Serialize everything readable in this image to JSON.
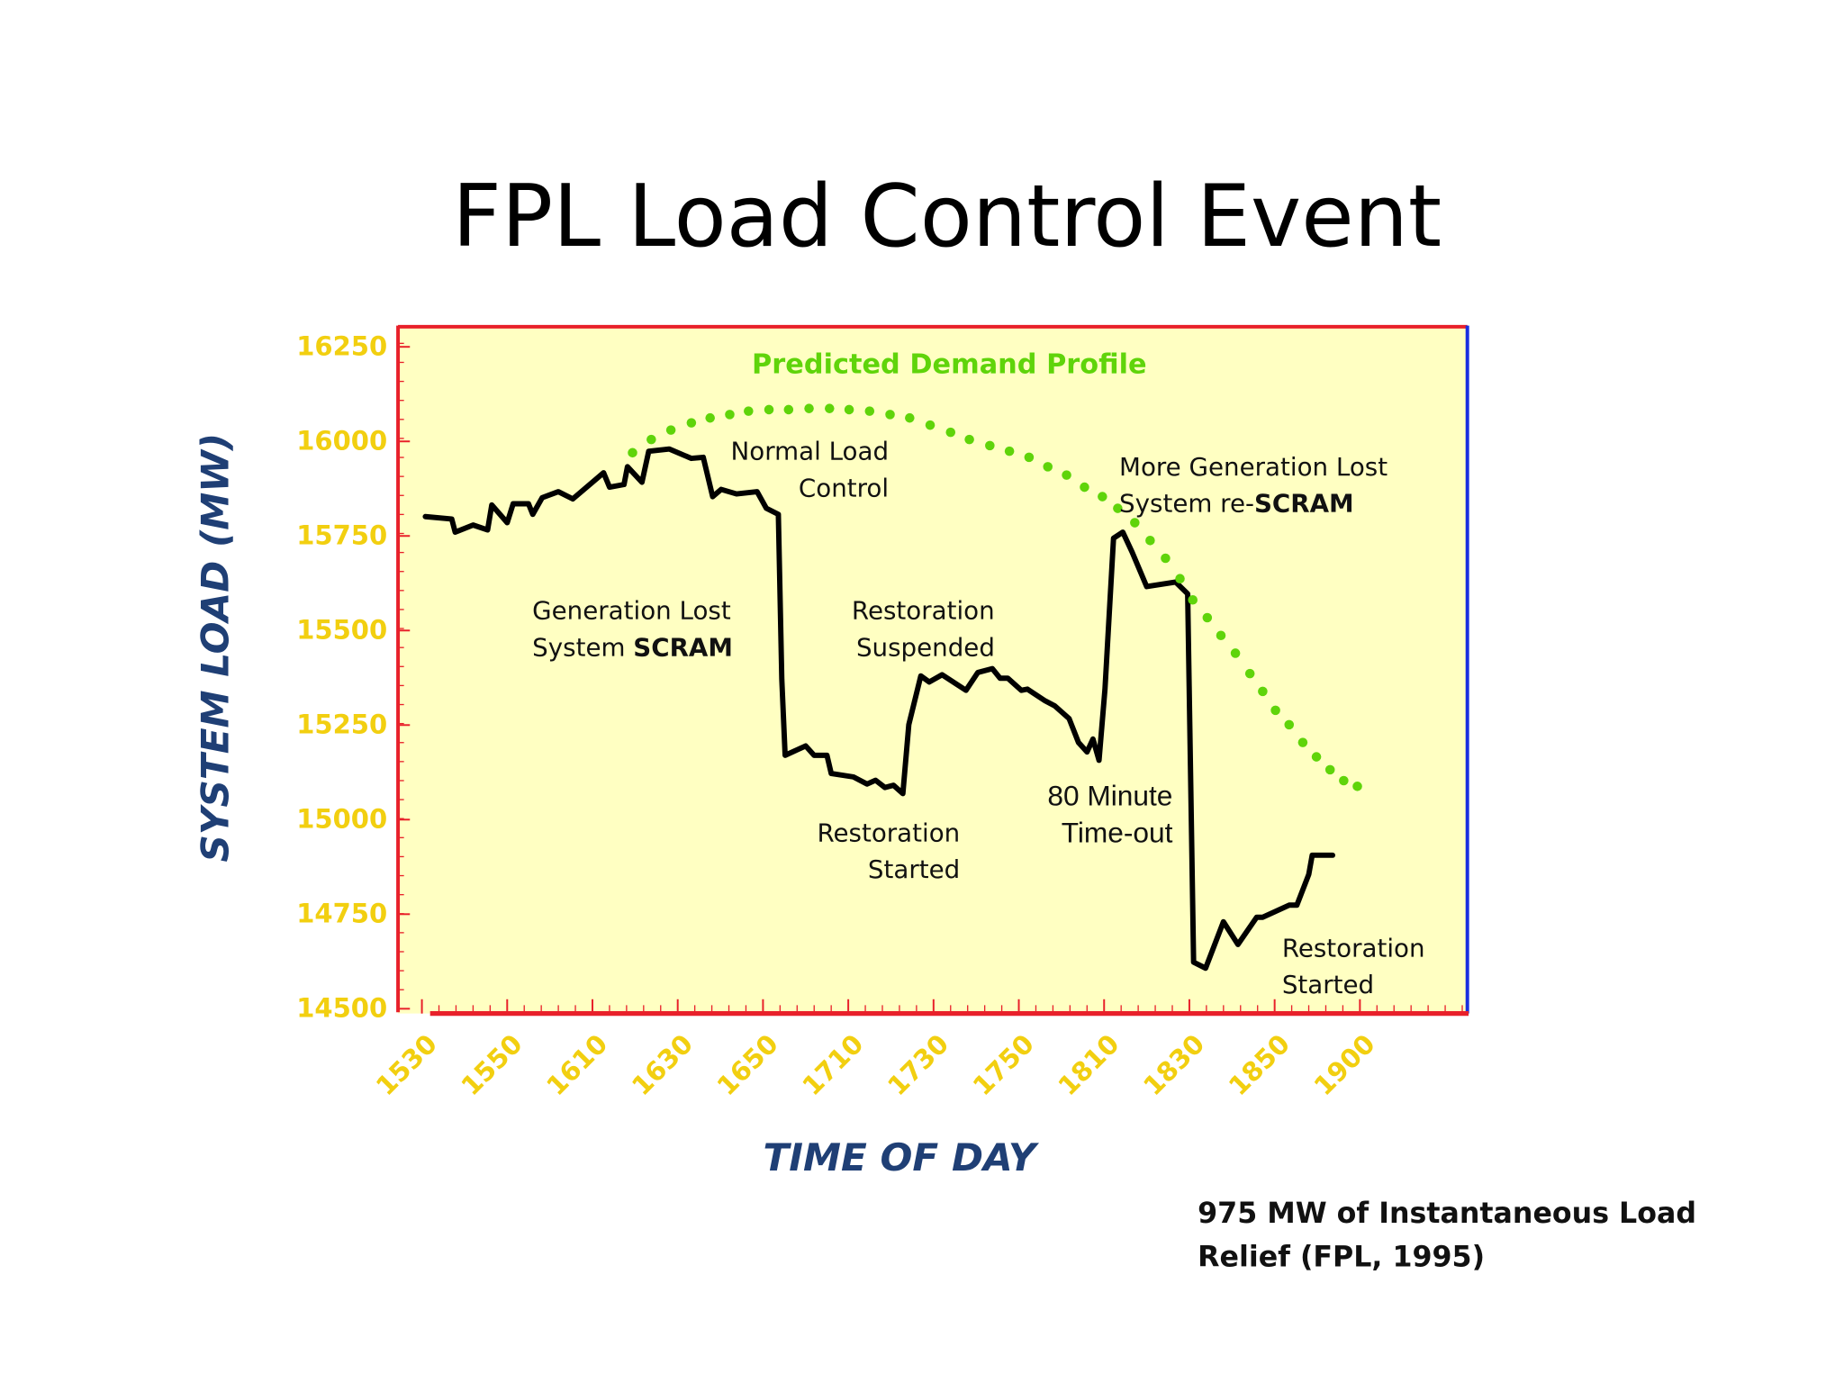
{
  "chart_data": {
    "type": "line",
    "title": "FPL Load Control Event",
    "xlabel": "TIME OF DAY",
    "ylabel": "SYSTEM LOAD (MW)",
    "note": [
      "975 MW of Instantaneous Load",
      "Relief (FPL, 1995)"
    ],
    "xlim": [
      -0.28,
      12.26
    ],
    "xticks": [
      {
        "value": 0,
        "label": "1530"
      },
      {
        "value": 1,
        "label": "1550"
      },
      {
        "value": 2,
        "label": "1610"
      },
      {
        "value": 3,
        "label": "1630"
      },
      {
        "value": 4,
        "label": "1650"
      },
      {
        "value": 5,
        "label": "1710"
      },
      {
        "value": 6,
        "label": "1730"
      },
      {
        "value": 7,
        "label": "1750"
      },
      {
        "value": 8,
        "label": "1810"
      },
      {
        "value": 9,
        "label": "1830"
      },
      {
        "value": 10,
        "label": "1850"
      },
      {
        "value": 11,
        "label": "1900"
      }
    ],
    "ylim": [
      14500,
      16300
    ],
    "yticks": [
      14500,
      14750,
      15000,
      15250,
      15500,
      15750,
      16000,
      16250
    ],
    "annotations": [
      [
        "Normal Load",
        "Control"
      ],
      [
        "Generation Lost",
        [
          "System ",
          "SCRAM"
        ]
      ],
      [
        "Restoration",
        "Suspended"
      ],
      [
        "Restoration",
        "Started"
      ],
      [
        "80 Minute",
        "Time-out"
      ],
      [
        "More Generation Lost",
        [
          "System re-",
          "SCRAM"
        ]
      ],
      [
        "Restoration",
        "Started"
      ]
    ],
    "series": [
      {
        "color": "#000000",
        "style": "solid",
        "x": [
          0.04,
          0.35,
          0.39,
          0.6,
          0.77,
          0.82,
          1.0,
          1.07,
          1.25,
          1.3,
          1.41,
          1.6,
          1.77,
          2.13,
          2.2,
          2.37,
          2.41,
          2.58,
          2.66,
          2.9,
          3.16,
          3.3,
          3.41,
          3.51,
          3.69,
          3.93,
          4.04,
          4.18,
          4.22,
          4.26,
          4.5,
          4.6,
          4.75,
          4.8,
          5.06,
          5.22,
          5.32,
          5.43,
          5.53,
          5.64,
          5.71,
          5.85,
          5.95,
          6.1,
          6.38,
          6.52,
          6.69,
          6.78,
          6.87,
          7.03,
          7.1,
          7.31,
          7.42,
          7.59,
          7.7,
          7.8,
          7.87,
          7.94,
          8.01,
          8.11,
          8.22,
          8.33,
          8.5,
          8.84,
          8.98,
          9.05,
          9.19,
          9.4,
          9.57,
          9.79,
          9.86,
          10.17,
          10.26,
          10.4,
          10.44,
          10.68
        ],
        "values": [
          15801,
          15795,
          15760,
          15779,
          15766,
          15832,
          15785,
          15835,
          15835,
          15807,
          15851,
          15867,
          15848,
          15917,
          15879,
          15886,
          15933,
          15892,
          15974,
          15980,
          15955,
          15958,
          15854,
          15873,
          15861,
          15867,
          15823,
          15807,
          15371,
          15170,
          15195,
          15170,
          15170,
          15122,
          15113,
          15094,
          15104,
          15085,
          15091,
          15069,
          15251,
          15380,
          15364,
          15383,
          15342,
          15389,
          15399,
          15374,
          15374,
          15342,
          15345,
          15314,
          15301,
          15267,
          15204,
          15179,
          15213,
          15157,
          15345,
          15744,
          15760,
          15707,
          15616,
          15628,
          15597,
          14623,
          14607,
          14730,
          14670,
          14742,
          14742,
          14774,
          14774,
          14855,
          14906,
          14906
        ]
      },
      {
        "name": "Predicted Demand Profile",
        "color": "#5fd40a",
        "style": "dotted",
        "x": [
          2.47,
          2.69,
          2.92,
          3.16,
          3.38,
          3.61,
          3.83,
          4.07,
          4.3,
          4.54,
          4.78,
          5.01,
          5.25,
          5.49,
          5.72,
          5.96,
          6.2,
          6.42,
          6.66,
          6.89,
          7.12,
          7.34,
          7.56,
          7.77,
          7.98,
          8.16,
          8.36,
          8.54,
          8.72,
          8.89,
          9.04,
          9.21,
          9.37,
          9.54,
          9.71,
          9.86,
          10.01,
          10.17,
          10.33,
          10.49,
          10.65,
          10.81,
          10.97
        ],
        "values": [
          15970,
          16005,
          16030,
          16049,
          16062,
          16071,
          16080,
          16084,
          16084,
          16087,
          16087,
          16084,
          16080,
          16071,
          16062,
          16043,
          16024,
          16005,
          15989,
          15974,
          15958,
          15933,
          15911,
          15879,
          15854,
          15823,
          15785,
          15738,
          15691,
          15637,
          15581,
          15534,
          15487,
          15440,
          15386,
          15339,
          15289,
          15251,
          15204,
          15166,
          15132,
          15103,
          15088
        ]
      }
    ]
  }
}
